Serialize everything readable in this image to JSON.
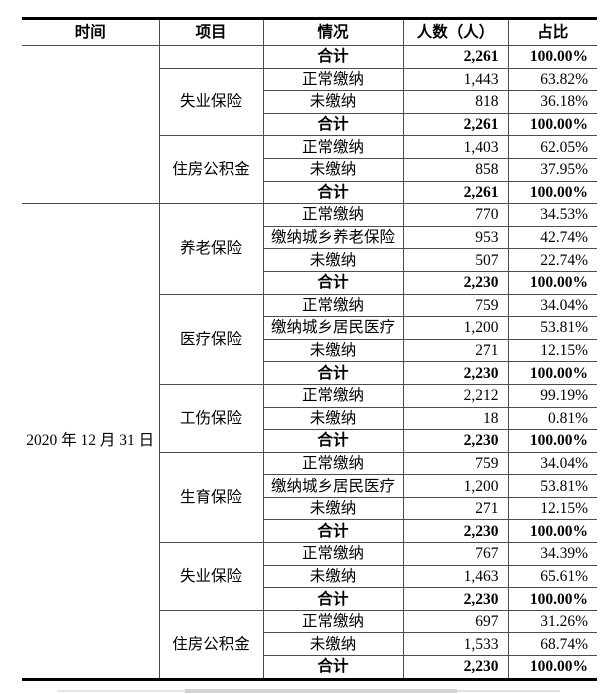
{
  "table": {
    "headers": [
      "时间",
      "项目",
      "情况",
      "人数（人）",
      "占比"
    ],
    "sections": [
      {
        "time": "",
        "groups": [
          {
            "project": "",
            "rows": [
              {
                "status": "合计",
                "count": "2,261",
                "pct": "100.00%",
                "bold": true
              }
            ]
          },
          {
            "project": "失业保险",
            "rows": [
              {
                "status": "正常缴纳",
                "count": "1,443",
                "pct": "63.82%"
              },
              {
                "status": "未缴纳",
                "count": "818",
                "pct": "36.18%"
              },
              {
                "status": "合计",
                "count": "2,261",
                "pct": "100.00%",
                "bold": true
              }
            ]
          },
          {
            "project": "住房公积金",
            "rows": [
              {
                "status": "正常缴纳",
                "count": "1,403",
                "pct": "62.05%"
              },
              {
                "status": "未缴纳",
                "count": "858",
                "pct": "37.95%"
              },
              {
                "status": "合计",
                "count": "2,261",
                "pct": "100.00%",
                "bold": true
              }
            ]
          }
        ]
      },
      {
        "time": "2020 年 12 月 31 日",
        "groups": [
          {
            "project": "养老保险",
            "rows": [
              {
                "status": "正常缴纳",
                "count": "770",
                "pct": "34.53%"
              },
              {
                "status": "缴纳城乡养老保险",
                "count": "953",
                "pct": "42.74%"
              },
              {
                "status": "未缴纳",
                "count": "507",
                "pct": "22.74%"
              },
              {
                "status": "合计",
                "count": "2,230",
                "pct": "100.00%",
                "bold": true
              }
            ]
          },
          {
            "project": "医疗保险",
            "rows": [
              {
                "status": "正常缴纳",
                "count": "759",
                "pct": "34.04%"
              },
              {
                "status": "缴纳城乡居民医疗",
                "count": "1,200",
                "pct": "53.81%"
              },
              {
                "status": "未缴纳",
                "count": "271",
                "pct": "12.15%"
              },
              {
                "status": "合计",
                "count": "2,230",
                "pct": "100.00%",
                "bold": true
              }
            ]
          },
          {
            "project": "工伤保险",
            "rows": [
              {
                "status": "正常缴纳",
                "count": "2,212",
                "pct": "99.19%"
              },
              {
                "status": "未缴纳",
                "count": "18",
                "pct": "0.81%"
              },
              {
                "status": "合计",
                "count": "2,230",
                "pct": "100.00%",
                "bold": true
              }
            ]
          },
          {
            "project": "生育保险",
            "rows": [
              {
                "status": "正常缴纳",
                "count": "759",
                "pct": "34.04%"
              },
              {
                "status": "缴纳城乡居民医疗",
                "count": "1,200",
                "pct": "53.81%"
              },
              {
                "status": "未缴纳",
                "count": "271",
                "pct": "12.15%"
              },
              {
                "status": "合计",
                "count": "2,230",
                "pct": "100.00%",
                "bold": true
              }
            ]
          },
          {
            "project": "失业保险",
            "rows": [
              {
                "status": "正常缴纳",
                "count": "767",
                "pct": "34.39%"
              },
              {
                "status": "未缴纳",
                "count": "1,463",
                "pct": "65.61%"
              },
              {
                "status": "合计",
                "count": "2,230",
                "pct": "100.00%",
                "bold": true
              }
            ]
          },
          {
            "project": "住房公积金",
            "rows": [
              {
                "status": "正常缴纳",
                "count": "697",
                "pct": "31.26%"
              },
              {
                "status": "未缴纳",
                "count": "1,533",
                "pct": "68.74%"
              },
              {
                "status": "合计",
                "count": "2,230",
                "pct": "100.00%",
                "bold": true
              }
            ]
          }
        ]
      }
    ]
  }
}
